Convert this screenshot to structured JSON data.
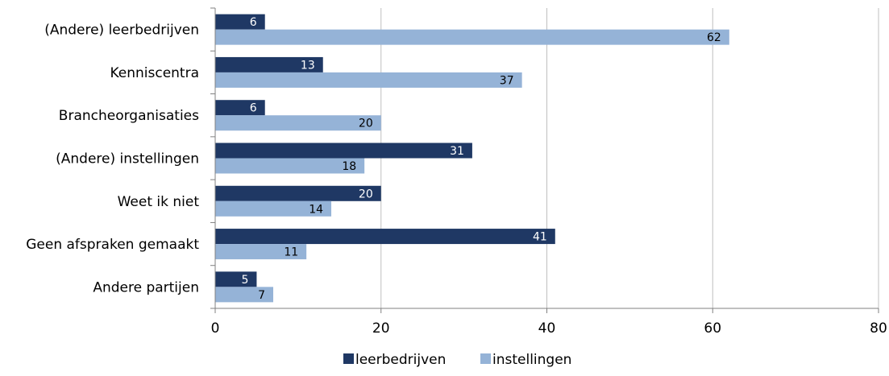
{
  "chart_data": {
    "type": "bar",
    "orientation": "horizontal",
    "title": "",
    "xlabel": "",
    "ylabel": "",
    "categories": [
      "(Andere) leerbedrijven",
      "Kenniscentra",
      "Brancheorganisaties",
      "(Andere) instellingen",
      "Weet ik niet",
      "Geen afspraken gemaakt",
      "Andere partijen"
    ],
    "series": [
      {
        "name": "leerbedrijven",
        "color": "#1f3864",
        "label_color": "#ffffff",
        "values": [
          6,
          13,
          6,
          31,
          20,
          41,
          5
        ]
      },
      {
        "name": "instellingen",
        "color": "#95b3d7",
        "label_color": "#000000",
        "values": [
          62,
          37,
          20,
          18,
          14,
          11,
          7
        ]
      }
    ],
    "xlim": [
      0,
      80
    ],
    "xticks": [
      0,
      20,
      40,
      60,
      80
    ],
    "grid": true,
    "legend_position": "bottom",
    "data_labels": true
  }
}
